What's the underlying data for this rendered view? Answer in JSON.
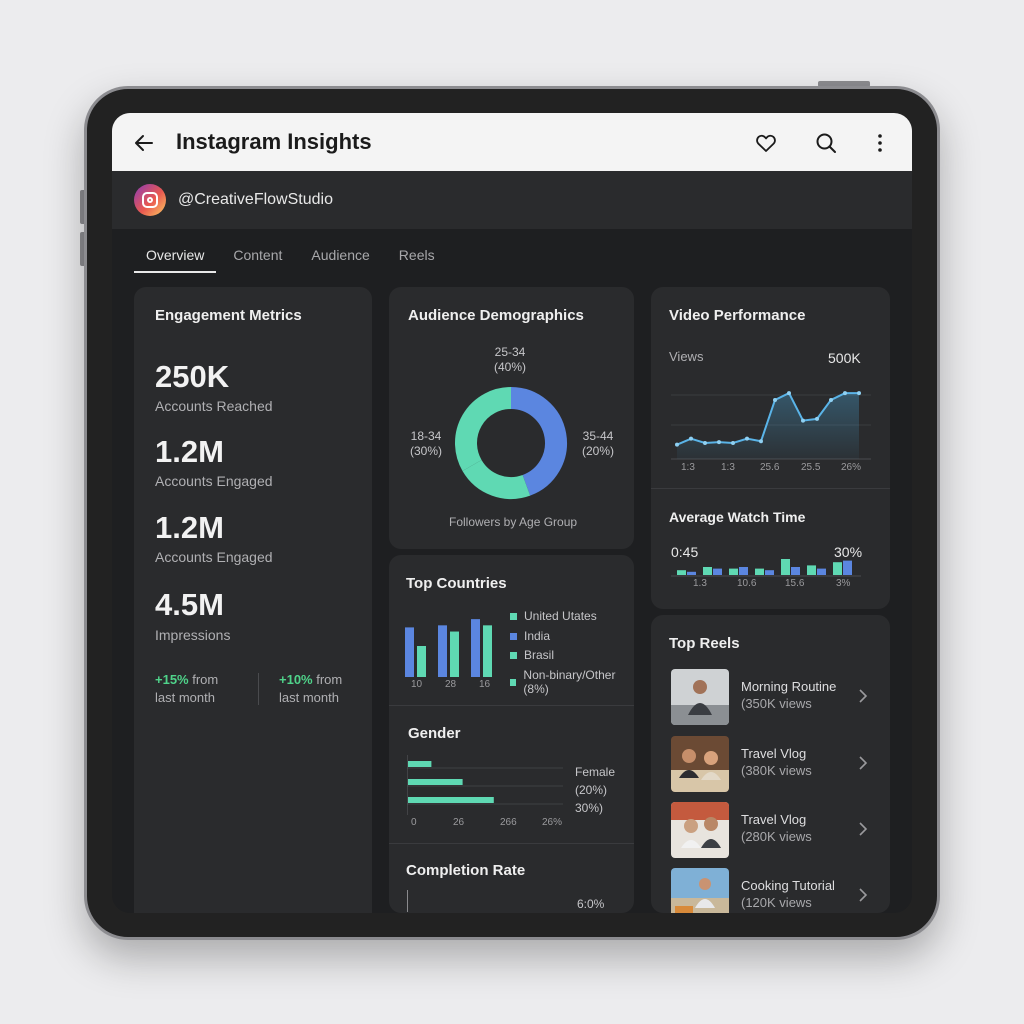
{
  "app": {
    "title": "Instagram Insights",
    "handle": "@CreativeFlowStudio"
  },
  "icons": {
    "back": "arrow-left-icon",
    "like": "heart-icon",
    "search": "search-icon",
    "more": "more-vertical-icon",
    "instagram": "instagram-logo-icon",
    "chevron": "chevron-right-icon"
  },
  "tabs": [
    {
      "label": "Overview",
      "active": true
    },
    {
      "label": "Content",
      "active": false
    },
    {
      "label": "Audience",
      "active": false
    },
    {
      "label": "Reels",
      "active": false
    }
  ],
  "engagement": {
    "title": "Engagement Metrics",
    "metrics": [
      {
        "value": "250K",
        "label": "Accounts Reached"
      },
      {
        "value": "1.2M",
        "label": "Accounts Engaged"
      },
      {
        "value": "1.2M",
        "label": "Accounts Engaged"
      },
      {
        "value": "4.5M",
        "label": "Impressions"
      }
    ],
    "deltas": [
      {
        "pct": "+15%",
        "from": " from",
        "period": "last month"
      },
      {
        "pct": "+10%",
        "from": " from",
        "period": "last month"
      }
    ]
  },
  "demographics": {
    "title": "Audience Demographics",
    "footer": "Followers by Age Group",
    "labels": [
      {
        "name": "25-34",
        "pct": "(40%)"
      },
      {
        "name": "18-34",
        "pct": "(30%)"
      },
      {
        "name": "35-44",
        "pct": "(20%)"
      }
    ]
  },
  "countries": {
    "title": "Top Countries",
    "legend": [
      "United Utates",
      "India",
      "Brasil",
      "Non-binary/Other (8%)"
    ],
    "x_ticks": [
      "10",
      "28",
      "16"
    ]
  },
  "gender": {
    "title": "Gender",
    "labels": [
      "Female",
      "(20%)",
      "30%)"
    ],
    "x_ticks": [
      "0",
      "26",
      "266",
      "26%"
    ]
  },
  "completion": {
    "title": "Completion Rate",
    "value": "6:0%"
  },
  "video": {
    "title": "Video Performance",
    "views_label": "Views",
    "views_max": "500K",
    "x_ticks": [
      "1:3",
      "1:3",
      "25.6",
      "25.5",
      "26%"
    ]
  },
  "watch_time": {
    "title": "Average Watch Time",
    "left_value": "0:45",
    "right_value": "30%",
    "x_ticks": [
      "1.3",
      "10.6",
      "15.6",
      "3%"
    ]
  },
  "reels": {
    "title": "Top Reels",
    "items": [
      {
        "title": "Morning Routine",
        "views": "(350K views"
      },
      {
        "title": "Travel Vlog",
        "views": "(380K views"
      },
      {
        "title": "Travel Vlog",
        "views": "(280K views"
      },
      {
        "title": "Cooking Tutorial",
        "views": "(120K views"
      }
    ]
  },
  "colors": {
    "teal": "#5fd9b3",
    "blue": "#5b86e0",
    "background": "#1e1f21",
    "card": "#2a2b2d",
    "positive": "#4fd38a"
  },
  "chart_data": [
    {
      "type": "pie",
      "title": "Audience Demographics",
      "categories": [
        "25-34",
        "18-34",
        "35-44"
      ],
      "values": [
        40,
        30,
        20
      ]
    },
    {
      "type": "bar",
      "title": "Top Countries",
      "categories": [
        "10",
        "28",
        "16"
      ],
      "series": [
        {
          "values": [
            48,
            50,
            56
          ]
        },
        {
          "values": [
            30,
            44,
            50
          ]
        }
      ]
    },
    {
      "type": "bar",
      "title": "Gender",
      "categories": [
        "1",
        "2",
        "3"
      ],
      "values": [
        15,
        35,
        55
      ],
      "xlim": [
        0,
        100
      ]
    },
    {
      "type": "area",
      "title": "Video Performance",
      "ylabel": "Views",
      "x": [
        0,
        1,
        2,
        3,
        4,
        5,
        6,
        7,
        8,
        9,
        10,
        11,
        12,
        13
      ],
      "values": [
        60,
        95,
        70,
        75,
        70,
        95,
        80,
        320,
        360,
        200,
        210,
        320,
        360,
        360
      ],
      "ylim": [
        0,
        500
      ]
    },
    {
      "type": "bar",
      "title": "Average Watch Time",
      "categories": [
        "1",
        "2",
        "3",
        "4",
        "5",
        "6",
        "7"
      ],
      "series": [
        {
          "values": [
            3,
            5,
            4,
            4,
            10,
            6,
            8
          ]
        },
        {
          "values": [
            2,
            4,
            5,
            3,
            5,
            4,
            9
          ]
        }
      ]
    }
  ]
}
